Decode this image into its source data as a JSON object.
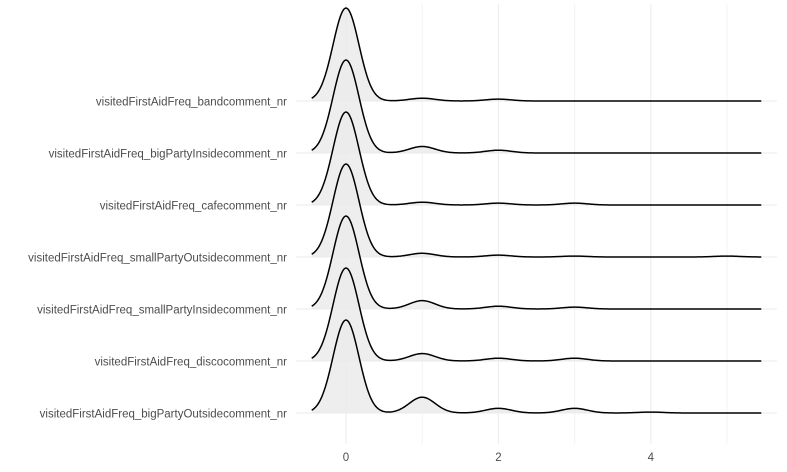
{
  "chart_data": {
    "type": "ridgeline",
    "title": "",
    "xlabel": "",
    "ylabel": "",
    "xlim": [
      -0.45,
      5.45
    ],
    "xticks": [
      0,
      2,
      4
    ],
    "grid": true,
    "series": [
      {
        "name": "visitedFirstAidFreq_bandcomment_nr",
        "bumps": [
          [
            0,
            1.0
          ],
          [
            1,
            0.03
          ],
          [
            2,
            0.02
          ]
        ]
      },
      {
        "name": "visitedFirstAidFreq_bigPartyInsidecomment_nr",
        "bumps": [
          [
            0,
            1.0
          ],
          [
            1,
            0.07
          ],
          [
            2,
            0.03
          ]
        ]
      },
      {
        "name": "visitedFirstAidFreq_cafecomment_nr",
        "bumps": [
          [
            0,
            1.0
          ],
          [
            1,
            0.03
          ],
          [
            2,
            0.02
          ],
          [
            3,
            0.02
          ]
        ]
      },
      {
        "name": "visitedFirstAidFreq_smallPartyOutsidecomment_nr",
        "bumps": [
          [
            0,
            1.0
          ],
          [
            1,
            0.04
          ],
          [
            2,
            0.02
          ],
          [
            3,
            0.01
          ],
          [
            5,
            0.01
          ]
        ]
      },
      {
        "name": "visitedFirstAidFreq_smallPartyInsidecomment_nr",
        "bumps": [
          [
            0,
            1.0
          ],
          [
            1,
            0.09
          ],
          [
            2,
            0.03
          ],
          [
            3,
            0.02
          ]
        ]
      },
      {
        "name": "visitedFirstAidFreq_discocomment_nr",
        "bumps": [
          [
            0,
            1.0
          ],
          [
            1,
            0.08
          ],
          [
            2,
            0.03
          ],
          [
            3,
            0.03
          ]
        ]
      },
      {
        "name": "visitedFirstAidFreq_bigPartyOutsidecomment_nr",
        "bumps": [
          [
            0,
            1.0
          ],
          [
            1,
            0.17
          ],
          [
            2,
            0.05
          ],
          [
            3,
            0.05
          ],
          [
            4,
            0.01
          ]
        ]
      }
    ]
  }
}
